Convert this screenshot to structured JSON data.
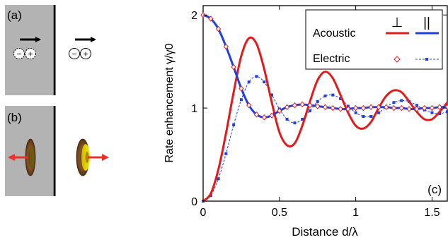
{
  "panels": {
    "a": {
      "label": "(a)",
      "minus": "−",
      "plus": "+"
    },
    "b": {
      "label": "(b)"
    }
  },
  "colors": {
    "wall": "#b3b3b3",
    "acoustic_perp": "#e31a1c",
    "acoustic_par": "#1f3fe0",
    "electric_perp": "#e31a1c",
    "electric_par": "#1f3fe0",
    "arrow_red": "#e8312a"
  },
  "chart_data": {
    "type": "line",
    "panel_label": "(c)",
    "xlabel": "Distance d/λ",
    "ylabel": "Rate enhancement γ/γ0",
    "xlim": [
      0,
      1.6
    ],
    "ylim": [
      0,
      2.1
    ],
    "xticks": [
      0,
      0.5,
      1,
      1.5
    ],
    "xtick_labels": [
      "0",
      "0.5",
      "1",
      "1.5"
    ],
    "yticks": [
      0,
      1,
      2
    ],
    "ytick_labels": [
      "0",
      "1",
      "2"
    ],
    "legend": {
      "position": "top-right",
      "col_headers": [
        "⊥",
        "||"
      ],
      "rows": [
        "Acoustic",
        "Electric"
      ]
    },
    "series": [
      {
        "name": "Acoustic ⊥",
        "style": "solid",
        "color": "#e31a1c",
        "x": [
          0.0,
          0.05,
          0.1,
          0.15,
          0.2,
          0.25,
          0.3,
          0.35,
          0.4,
          0.45,
          0.5,
          0.55,
          0.6,
          0.65,
          0.7,
          0.75,
          0.8,
          0.85,
          0.9,
          0.95,
          1.0,
          1.05,
          1.1,
          1.15,
          1.2,
          1.25,
          1.3,
          1.35,
          1.4,
          1.45,
          1.5,
          1.55,
          1.6
        ],
        "y": [
          0.0,
          0.08,
          0.34,
          0.73,
          1.17,
          1.56,
          1.75,
          1.69,
          1.42,
          1.06,
          0.74,
          0.6,
          0.62,
          0.81,
          1.07,
          1.3,
          1.39,
          1.32,
          1.14,
          0.95,
          0.81,
          0.78,
          0.85,
          1.0,
          1.13,
          1.19,
          1.17,
          1.07,
          0.96,
          0.88,
          0.88,
          0.96,
          1.06
        ]
      },
      {
        "name": "Acoustic ||",
        "style": "solid",
        "color": "#1f3fe0",
        "x": [
          0.0,
          0.05,
          0.1,
          0.15,
          0.2,
          0.25,
          0.3,
          0.35,
          0.4,
          0.45,
          0.5,
          0.55,
          0.6,
          0.65,
          0.7,
          0.75,
          0.8,
          0.85,
          0.9,
          0.95,
          1.0,
          1.05,
          1.1,
          1.15,
          1.2,
          1.25,
          1.3,
          1.35,
          1.4,
          1.45,
          1.5,
          1.55,
          1.6
        ],
        "y": [
          2.0,
          1.96,
          1.85,
          1.66,
          1.44,
          1.21,
          1.03,
          0.93,
          0.9,
          0.92,
          0.97,
          1.01,
          1.03,
          1.04,
          1.03,
          1.02,
          1.01,
          1.0,
          0.99,
          0.99,
          1.0,
          1.0,
          1.01,
          1.01,
          1.01,
          1.0,
          1.0,
          0.99,
          0.99,
          1.0,
          1.0,
          1.01,
          1.01
        ]
      },
      {
        "name": "Electric ⊥",
        "style": "diamonds",
        "color": "#e31a1c",
        "x": [
          0.0,
          0.05,
          0.1,
          0.15,
          0.2,
          0.25,
          0.3,
          0.35,
          0.4,
          0.45,
          0.5,
          0.55,
          0.6,
          0.65,
          0.7,
          0.75,
          0.8,
          0.85,
          0.9,
          0.95,
          1.0,
          1.05,
          1.1,
          1.15,
          1.2,
          1.25,
          1.3,
          1.35,
          1.4,
          1.45,
          1.5,
          1.55,
          1.6
        ],
        "y": [
          2.0,
          1.96,
          1.85,
          1.66,
          1.44,
          1.21,
          1.03,
          0.93,
          0.9,
          0.92,
          0.97,
          1.01,
          1.03,
          1.04,
          1.03,
          1.02,
          1.01,
          1.0,
          0.99,
          0.99,
          1.0,
          1.0,
          1.01,
          1.01,
          1.01,
          1.0,
          1.0,
          0.99,
          0.99,
          1.0,
          1.0,
          1.01,
          1.01
        ]
      },
      {
        "name": "Electric ||",
        "style": "dashed-squares",
        "color": "#1f3fe0",
        "x": [
          0.0,
          0.05,
          0.1,
          0.15,
          0.2,
          0.25,
          0.3,
          0.35,
          0.4,
          0.45,
          0.5,
          0.55,
          0.6,
          0.65,
          0.7,
          0.75,
          0.8,
          0.85,
          0.9,
          0.95,
          1.0,
          1.05,
          1.1,
          1.15,
          1.2,
          1.25,
          1.3,
          1.35,
          1.4,
          1.45,
          1.5,
          1.55,
          1.6
        ],
        "y": [
          0.0,
          0.06,
          0.24,
          0.51,
          0.82,
          1.09,
          1.28,
          1.34,
          1.28,
          1.14,
          0.99,
          0.88,
          0.84,
          0.88,
          0.97,
          1.07,
          1.13,
          1.14,
          1.1,
          1.02,
          0.95,
          0.91,
          0.91,
          0.95,
          1.01,
          1.06,
          1.08,
          1.07,
          1.03,
          0.98,
          0.95,
          0.94,
          0.96
        ]
      }
    ]
  }
}
